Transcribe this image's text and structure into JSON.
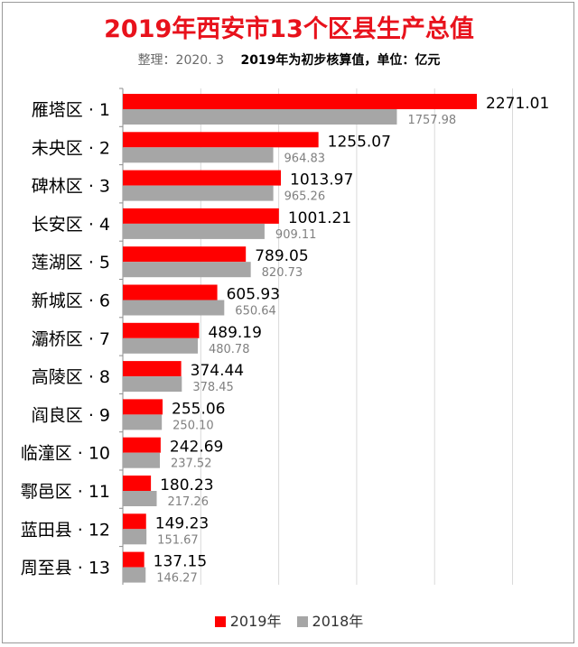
{
  "header": {
    "title": "2019年西安市13个区县生产总值",
    "note_left": "整理：2020. 3",
    "note_right": "2019年为初步核算值，单位：亿元"
  },
  "colors": {
    "series_2019": "#ff0000",
    "series_2018": "#a6a6a6",
    "grid": "#d9d9d9",
    "axis": "#8c8c8c"
  },
  "chart_data": {
    "type": "bar",
    "orientation": "horizontal",
    "categories": [
      "雁塔区 · 1",
      "未央区 · 2",
      "碑林区 · 3",
      "长安区 · 4",
      "莲湖区 · 5",
      "新城区 · 6",
      "灞桥区 · 7",
      "高陵区 · 8",
      "阎良区 · 9",
      "临潼区 · 10",
      "鄠邑区 · 11",
      "蓝田县 · 12",
      "周至县 · 13"
    ],
    "series": [
      {
        "name": "2019年",
        "values": [
          2271.01,
          1255.07,
          1013.97,
          1001.21,
          789.05,
          605.93,
          489.19,
          374.44,
          255.06,
          242.69,
          180.23,
          149.23,
          137.15
        ]
      },
      {
        "name": "2018年",
        "values": [
          1757.98,
          964.83,
          965.26,
          909.11,
          820.73,
          650.64,
          480.78,
          378.45,
          250.1,
          237.52,
          217.26,
          151.67,
          146.27
        ]
      }
    ],
    "xlim": [
      0,
      2500
    ],
    "grid": true,
    "legend": "bottom"
  },
  "legend": {
    "items": [
      {
        "label": "2019年"
      },
      {
        "label": "2018年"
      }
    ]
  }
}
